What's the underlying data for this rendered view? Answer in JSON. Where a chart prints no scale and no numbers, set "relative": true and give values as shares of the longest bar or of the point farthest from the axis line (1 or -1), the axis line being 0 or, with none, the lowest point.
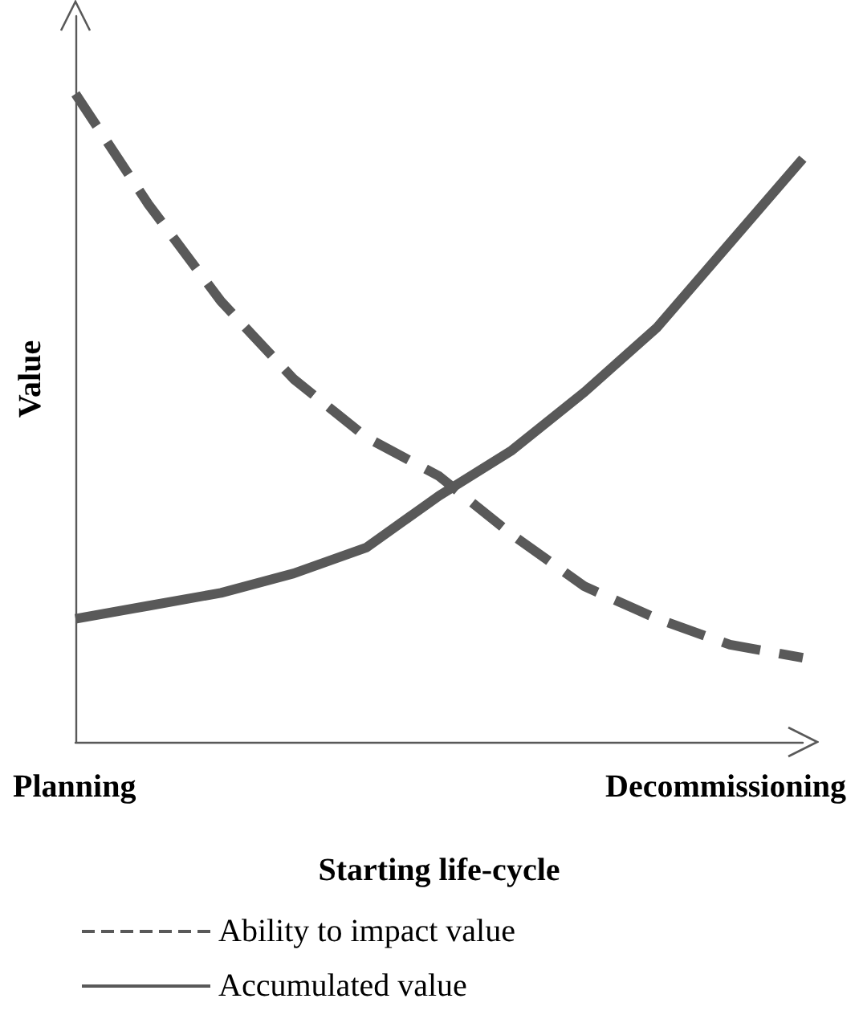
{
  "chart_data": {
    "type": "line",
    "relative": true,
    "xlabel": "Starting life-cycle",
    "ylabel": "Value",
    "categories": [
      null,
      null,
      null,
      null,
      null,
      null,
      null,
      null,
      null,
      null,
      null
    ],
    "annotations": [
      "Planning",
      "Decommissioning"
    ],
    "series": [
      {
        "name": "Ability to impact value",
        "color": "#595959",
        "line_style": "dashed",
        "values": [
          1,
          0.83,
          0.68,
          0.56,
          0.47,
          0.41,
          0.32,
          0.24,
          0.19,
          0.15,
          0.13
        ]
      },
      {
        "name": "Accumulated value",
        "color": "#595959",
        "line_style": "solid",
        "values": [
          0.19,
          0.21,
          0.23,
          0.26,
          0.3,
          0.38,
          0.45,
          0.54,
          0.64,
          0.77,
          0.9
        ]
      }
    ],
    "marker": "none",
    "grid": false,
    "legend": "bottom"
  }
}
